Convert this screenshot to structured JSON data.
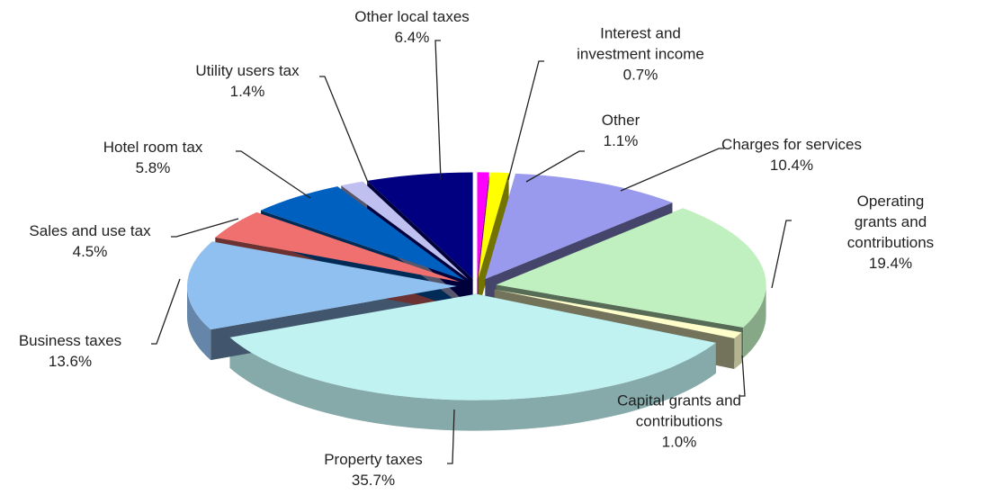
{
  "chart_data": {
    "type": "pie",
    "categories": [
      "Interest and\ninvestment  income",
      "Other",
      "Charges for services",
      "Operating grants and\ncontributions",
      "Capital grants and\ncontributions",
      "Property taxes",
      "Business taxes",
      "Sales and use tax",
      "Hotel  room tax",
      "Utility users tax",
      "Other local taxes"
    ],
    "values": [
      0.7,
      1.1,
      10.4,
      19.4,
      1.0,
      35.7,
      13.6,
      4.5,
      5.8,
      1.4,
      6.4
    ],
    "value_labels": [
      "0.7%",
      "1.1%",
      "10.4%",
      "19.4%",
      "1.0%",
      "35.7%",
      "13.6%",
      "4.5%",
      "5.8%",
      "1.4%",
      "6.4%"
    ],
    "colors": [
      "#ff00ff",
      "#ffff00",
      "#9999ee",
      "#c0f0c0",
      "#ffffcc",
      "#c0f2f2",
      "#90c0f0",
      "#f07070",
      "#0060c0",
      "#c0c0f0",
      "#000080"
    ]
  }
}
